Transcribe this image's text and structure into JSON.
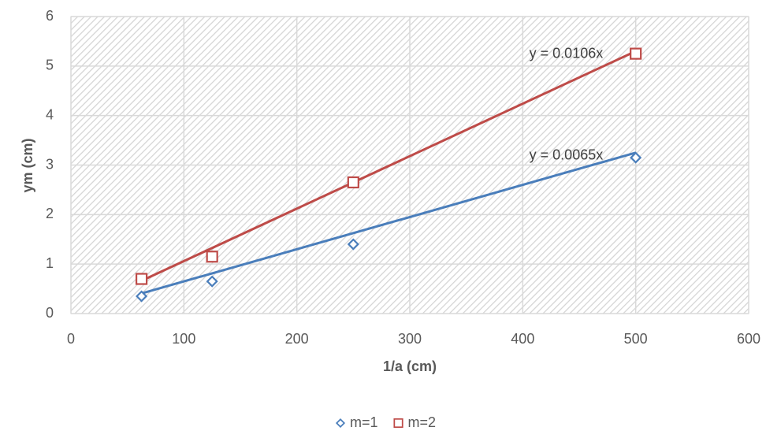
{
  "chart_data": {
    "type": "scatter",
    "x_label": "1/a (cm)",
    "y_label": "ym (cm)",
    "x": [
      62.5,
      125,
      250,
      500
    ],
    "series": [
      {
        "name": "m=1",
        "color": "#4a7ebb",
        "marker": "diamond",
        "values": [
          0.35,
          0.65,
          1.4,
          3.15
        ],
        "trendline": {
          "label": "y = 0.0065x",
          "slope": 0.0065
        }
      },
      {
        "name": "m=2",
        "color": "#be4b48",
        "marker": "square",
        "values": [
          0.7,
          1.15,
          2.65,
          5.25
        ],
        "trendline": {
          "label": "y = 0.0106x",
          "slope": 0.0106
        }
      }
    ],
    "xlim": [
      0,
      600
    ],
    "xticks": [
      0,
      100,
      200,
      300,
      400,
      500,
      600
    ],
    "ylim": [
      0,
      6
    ],
    "yticks": [
      0,
      1,
      2,
      3,
      4,
      5,
      6
    ],
    "grid": true,
    "legend": "bottom"
  }
}
